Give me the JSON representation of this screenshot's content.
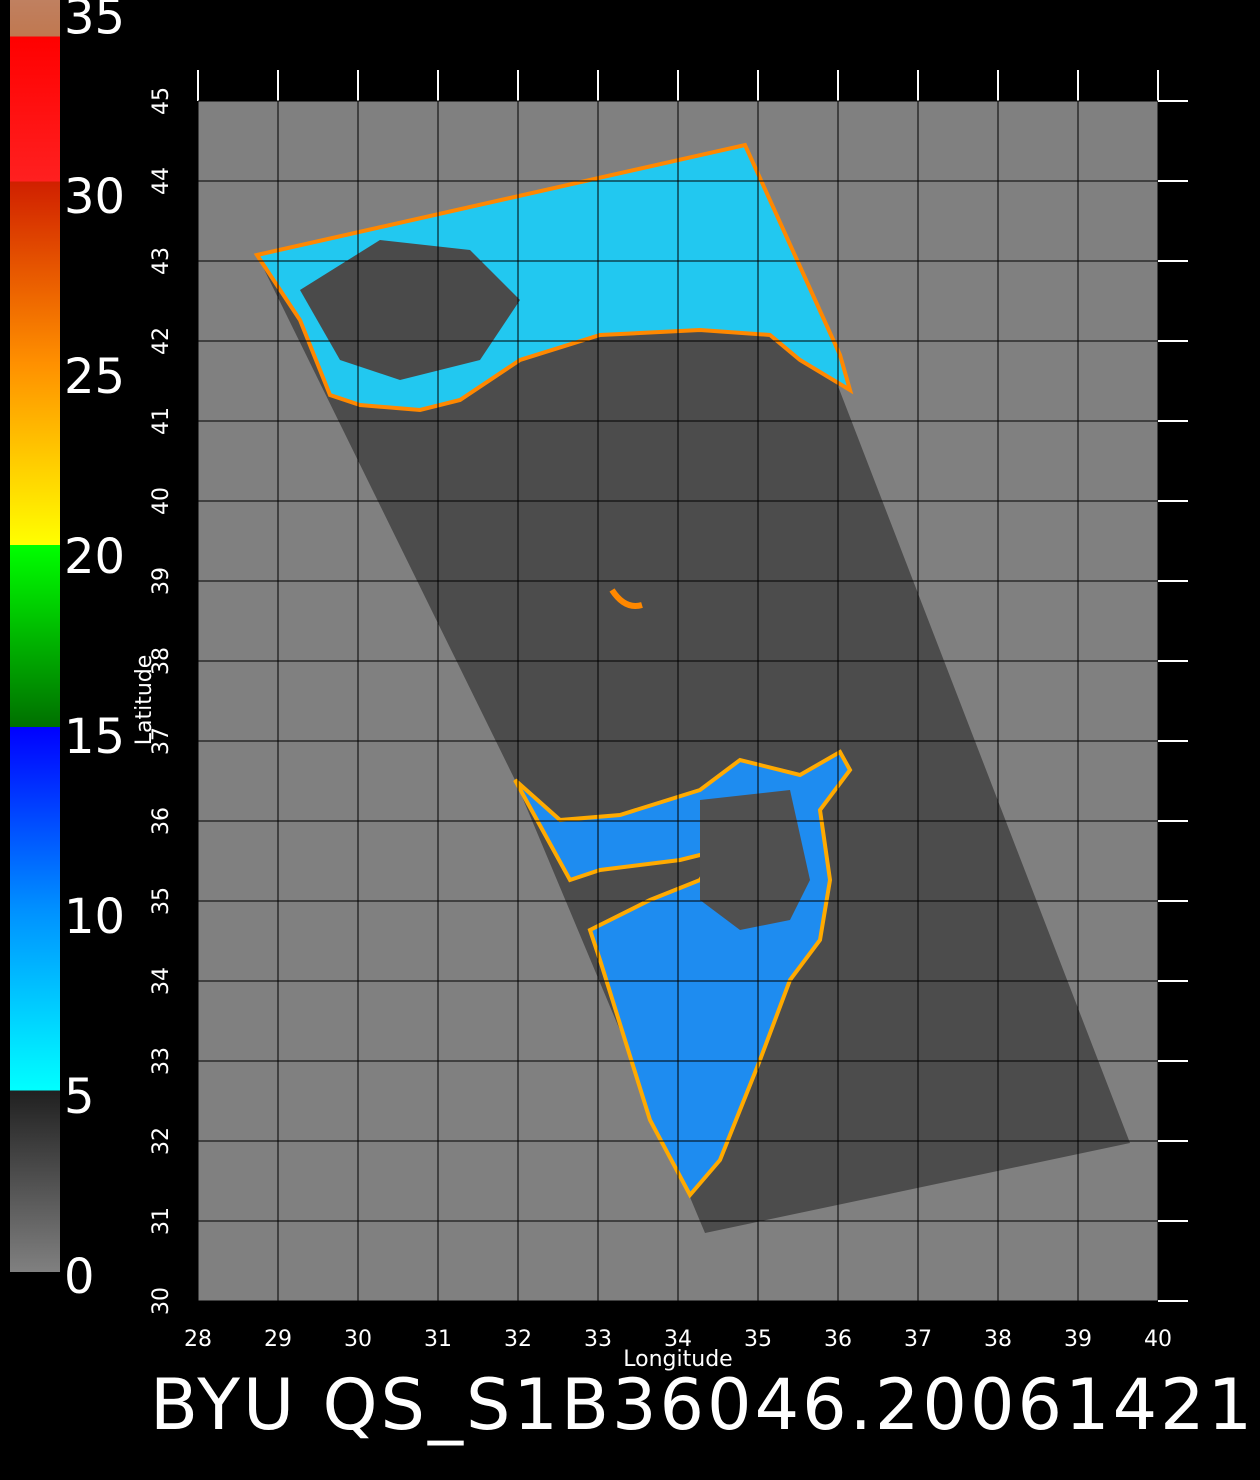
{
  "title": "BYU QS_S1B36046.20061421",
  "map": {
    "xlabel": "Longitude",
    "ylabel": "Latitude",
    "xlim": [
      28,
      40
    ],
    "ylim": [
      30,
      45
    ],
    "xticks": [
      28,
      29,
      30,
      31,
      32,
      33,
      34,
      35,
      36,
      37,
      38,
      39,
      40
    ],
    "yticks": [
      30,
      31,
      32,
      33,
      34,
      35,
      36,
      37,
      38,
      39,
      40,
      41,
      42,
      43,
      44,
      45
    ]
  },
  "colorbar": {
    "range": [
      0,
      35
    ],
    "ticks": [
      0,
      5,
      10,
      15,
      20,
      25,
      30,
      35
    ],
    "stops": [
      {
        "value": 0,
        "color": "#808080"
      },
      {
        "value": 5,
        "color": "#202020"
      },
      {
        "value": 5,
        "color": "#00ffff"
      },
      {
        "value": 10,
        "color": "#0090ff"
      },
      {
        "value": 15,
        "color": "#0000ff"
      },
      {
        "value": 15,
        "color": "#007000"
      },
      {
        "value": 20,
        "color": "#00ff00"
      },
      {
        "value": 20,
        "color": "#ffff00"
      },
      {
        "value": 25,
        "color": "#ff9000"
      },
      {
        "value": 30,
        "color": "#d02000"
      },
      {
        "value": 30,
        "color": "#ff2020"
      },
      {
        "value": 34,
        "color": "#ff0000"
      },
      {
        "value": 34,
        "color": "#c07850"
      },
      {
        "value": 35,
        "color": "#c08060"
      }
    ]
  }
}
